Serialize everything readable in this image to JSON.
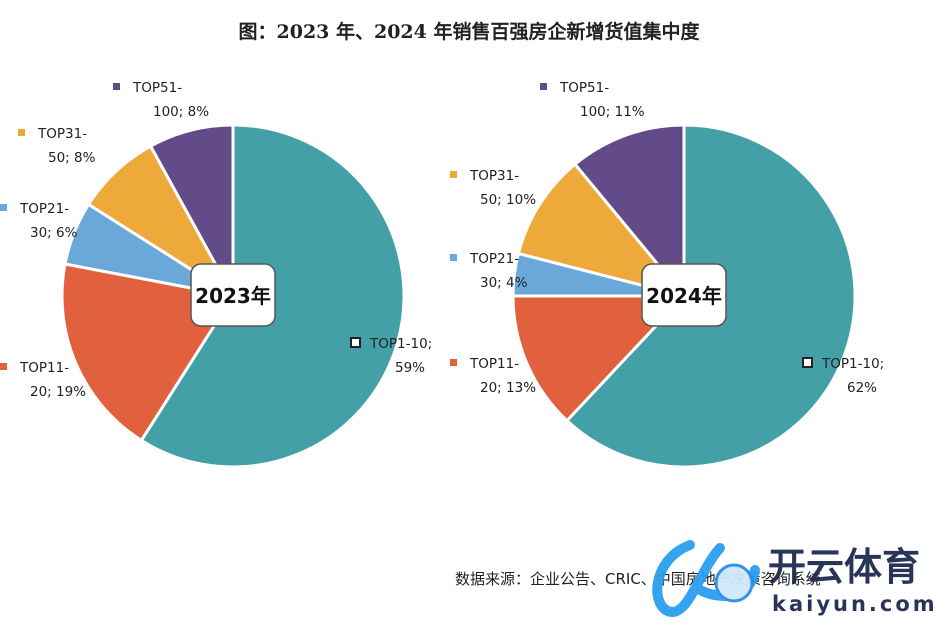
{
  "chart_data": [
    {
      "type": "pie",
      "title": "图：2023 年、2024 年销售百强房企新增货值集中度",
      "center_label": "2023年",
      "slices": [
        {
          "name": "TOP1-10",
          "line1": "TOP1-10;",
          "line2": "59%",
          "value": 59,
          "color": "#43A0A6"
        },
        {
          "name": "TOP11-20",
          "line1": "TOP11-",
          "line2": "20; 19%",
          "value": 19,
          "color": "#E1603D"
        },
        {
          "name": "TOP21-30",
          "line1": "TOP21-",
          "line2": "30; 6%",
          "value": 6,
          "color": "#6AA8D9"
        },
        {
          "name": "TOP31-50",
          "line1": "TOP31-",
          "line2": "50; 8%",
          "value": 8,
          "color": "#EDAA3A"
        },
        {
          "name": "TOP51-100",
          "line1": "TOP51-",
          "line2": "100; 8%",
          "value": 8,
          "color": "#634B8A"
        }
      ]
    },
    {
      "type": "pie",
      "center_label": "2024年",
      "slices": [
        {
          "name": "TOP1-10",
          "line1": "TOP1-10;",
          "line2": "62%",
          "value": 62,
          "color": "#43A0A6"
        },
        {
          "name": "TOP11-20",
          "line1": "TOP11-",
          "line2": "20; 13%",
          "value": 13,
          "color": "#E1603D"
        },
        {
          "name": "TOP21-30",
          "line1": "TOP21-",
          "line2": "30; 4%",
          "value": 4,
          "color": "#6AA8D9"
        },
        {
          "name": "TOP31-50",
          "line1": "TOP31-",
          "line2": "50; 10%",
          "value": 10,
          "color": "#EDAA3A"
        },
        {
          "name": "TOP51-100",
          "line1": "TOP51-",
          "line2": "100; 11%",
          "value": 11,
          "color": "#634B8A"
        }
      ]
    }
  ],
  "source": "数据来源：企业公告、CRIC、中国房地产决策咨询系统",
  "watermark": {
    "name": "开云体育",
    "url_text": "kaiyun.com"
  }
}
